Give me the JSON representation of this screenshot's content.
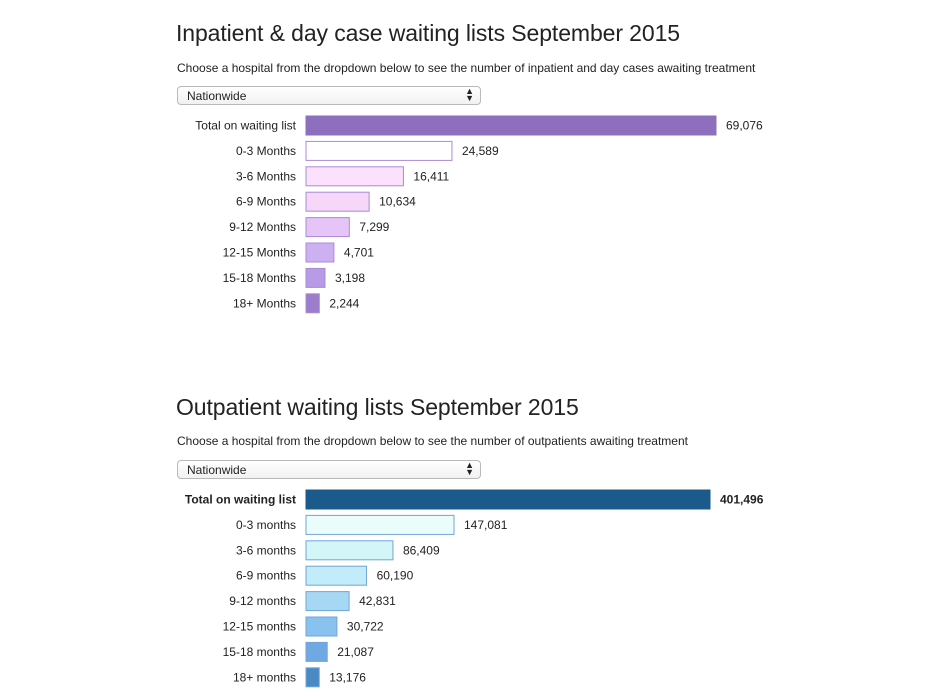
{
  "sections": [
    {
      "title": "Inpatient & day case waiting lists September 2015",
      "subtitle": "Choose a hospital from the dropdown below to see the number of inpatient and day cases awaiting treatment",
      "dropdown": {
        "selected": "Nationwide"
      }
    },
    {
      "title": "Outpatient waiting lists September 2015",
      "subtitle": "Choose a hospital from the dropdown below to see the number of outpatients awaiting treatment",
      "dropdown": {
        "selected": "Nationwide"
      }
    }
  ],
  "chart_data": [
    {
      "type": "bar",
      "orientation": "horizontal",
      "title": "Inpatient & day case waiting lists September 2015",
      "categories": [
        "Total on waiting list",
        "0-3 Months",
        "3-6 Months",
        "6-9 Months",
        "9-12 Months",
        "12-15 Months",
        "15-18 Months",
        "18+ Months"
      ],
      "values": [
        69076,
        24589,
        16411,
        10634,
        7299,
        4701,
        3198,
        2244
      ],
      "value_labels": [
        "69,076",
        "24,589",
        "16,411",
        "10,634",
        "7,299",
        "4,701",
        "3,198",
        "2,244"
      ],
      "colors": [
        "#8e6fbd",
        "#ffffff",
        "#fbe1fb",
        "#f6d6f9",
        "#e6c4f7",
        "#cdb0f2",
        "#b79be6",
        "#9c7dcc"
      ],
      "stroke": "#a98bd4",
      "bold_total": false
    },
    {
      "type": "bar",
      "orientation": "horizontal",
      "title": "Outpatient waiting lists September 2015",
      "categories": [
        "Total on waiting list",
        "0-3 months",
        "3-6 months",
        "6-9 months",
        "9-12 months",
        "12-15 months",
        "15-18 months",
        "18+ months"
      ],
      "values": [
        401496,
        147081,
        86409,
        60190,
        42831,
        30722,
        21087,
        13176
      ],
      "value_labels": [
        "401,496",
        "147,081",
        "86,409",
        "60,190",
        "42,831",
        "30,722",
        "21,087",
        "13,176"
      ],
      "colors": [
        "#1d5a8c",
        "#eafdfb",
        "#d3f7f9",
        "#c2ecf9",
        "#a6d8f4",
        "#8ac2ef",
        "#6fa8e3",
        "#4a89c4"
      ],
      "stroke": "#6fa6d8",
      "bold_total": true
    }
  ]
}
